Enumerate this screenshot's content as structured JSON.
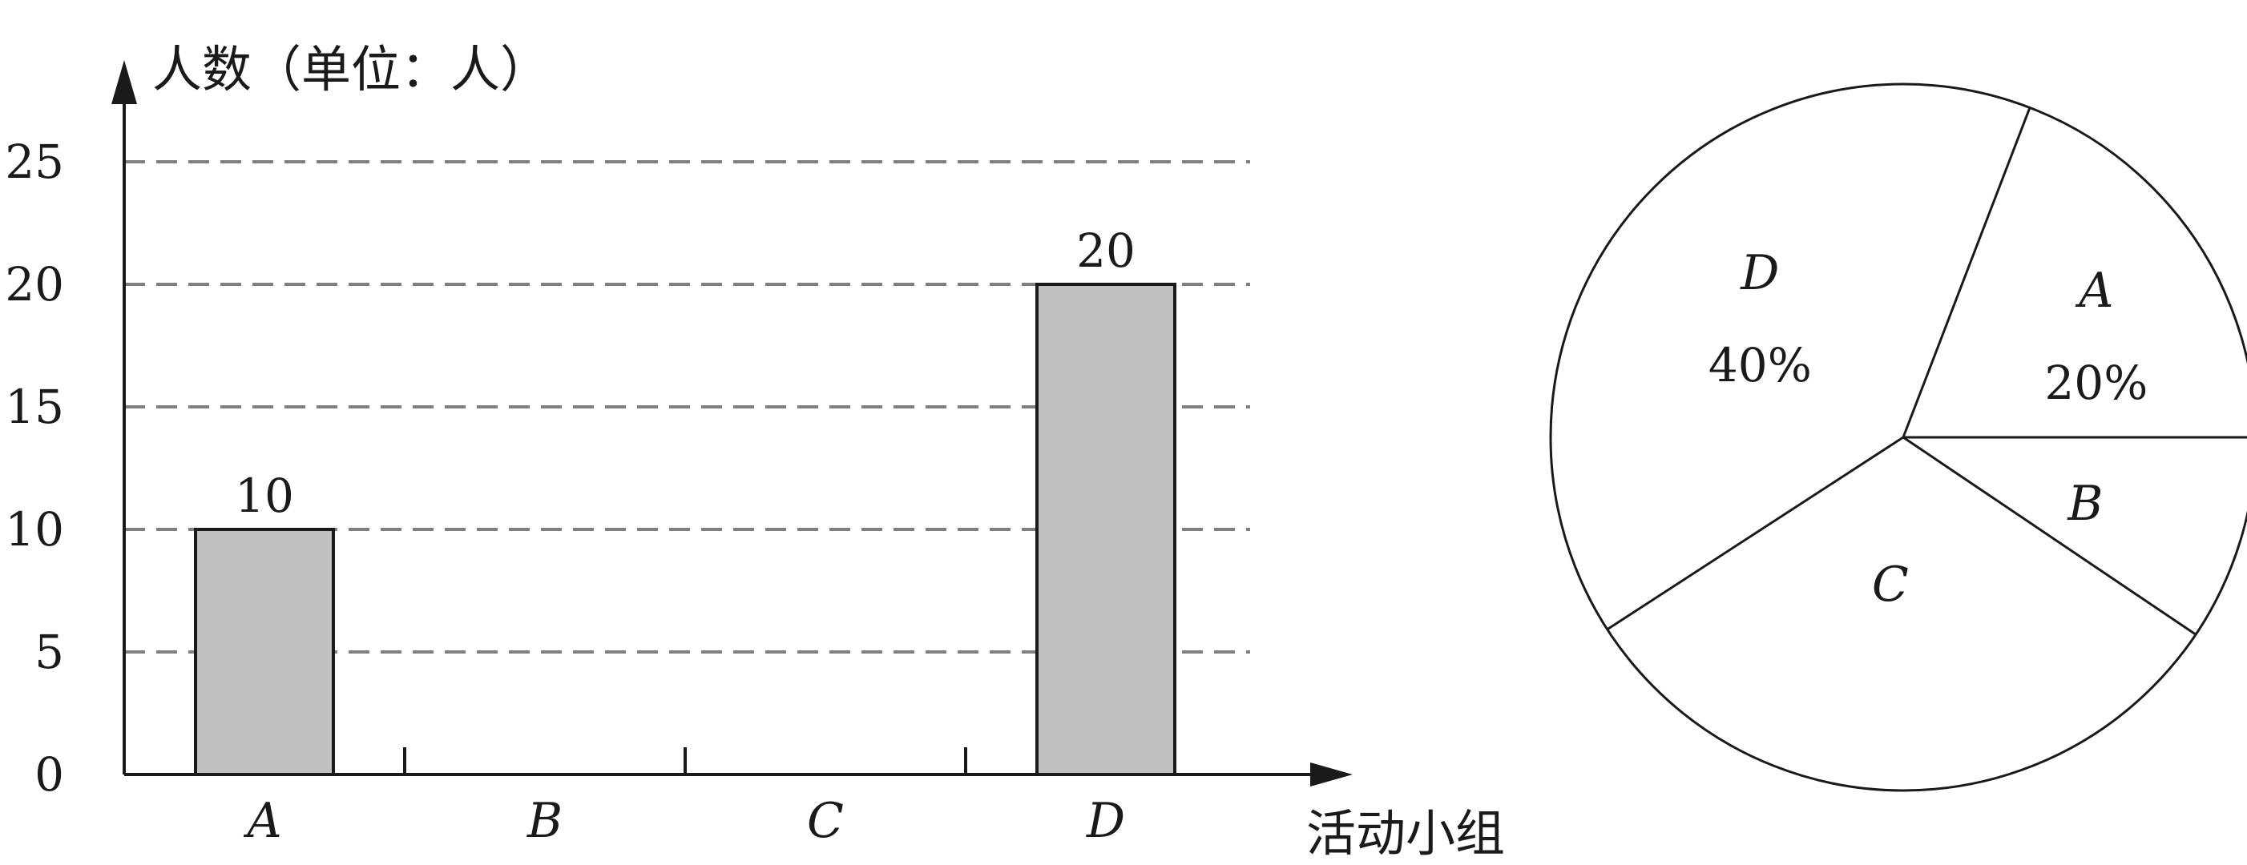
{
  "chart_data": [
    {
      "type": "bar",
      "title": "",
      "ylabel": "人数（单位：人）",
      "xlabel": "活动小组",
      "categories": [
        "A",
        "B",
        "C",
        "D"
      ],
      "values": [
        10,
        null,
        null,
        20
      ],
      "data_labels": [
        "10",
        "",
        "",
        "20"
      ],
      "ylim": [
        0,
        25
      ],
      "yticks": [
        0,
        5,
        10,
        15,
        20,
        25
      ],
      "grid": "dashed horizontal",
      "bar_color": "#c0c0c0"
    },
    {
      "type": "pie",
      "slices": [
        {
          "label": "A",
          "value": 20,
          "percent_label": "20%"
        },
        {
          "label": "B",
          "value": null,
          "percent_label": ""
        },
        {
          "label": "C",
          "value": null,
          "percent_label": ""
        },
        {
          "label": "D",
          "value": 40,
          "percent_label": "40%"
        }
      ]
    }
  ]
}
